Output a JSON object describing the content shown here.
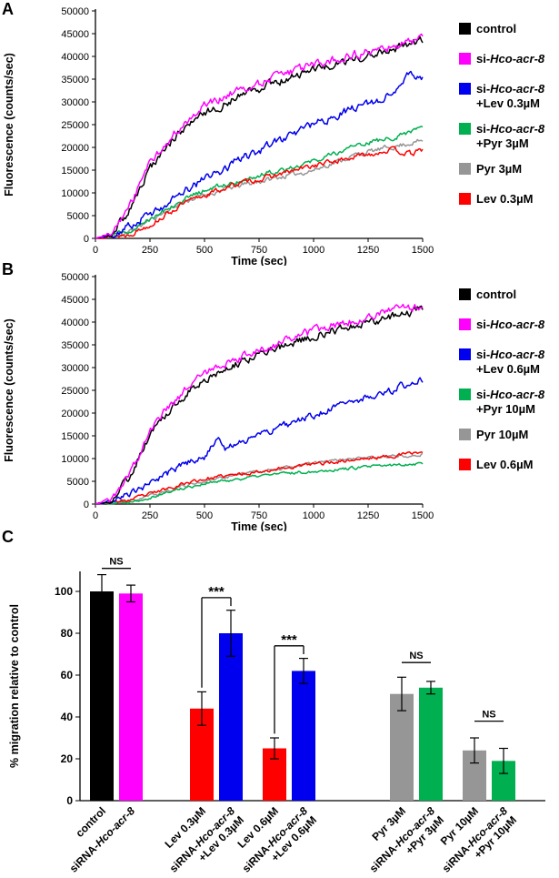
{
  "panel_labels": {
    "a": "A",
    "b": "B",
    "c": "C"
  },
  "chart_data": [
    {
      "type": "line",
      "panel": "A",
      "xlabel": "Time (sec)",
      "ylabel": "Fluorescence (counts/sec)",
      "xlim": [
        0,
        1500
      ],
      "ylim": [
        0,
        50000
      ],
      "xticks": [
        0,
        250,
        500,
        750,
        1000,
        1250,
        1500
      ],
      "yticks": [
        0,
        5000,
        10000,
        15000,
        20000,
        25000,
        30000,
        35000,
        40000,
        45000,
        50000
      ],
      "series": [
        {
          "name": "Pyr 3µM",
          "color": "#969696",
          "seed": 11,
          "noise": 900,
          "ax": [
            0,
            150,
            250,
            400,
            500,
            650,
            800,
            1000,
            1200,
            1350,
            1500
          ],
          "ay": [
            0,
            1200,
            4000,
            8000,
            9500,
            11500,
            13000,
            15000,
            18500,
            20000,
            21500
          ]
        },
        {
          "name": "si-Hco-acr-8 +Pyr 3µM",
          "color": "#00b050",
          "seed": 12,
          "noise": 900,
          "ax": [
            0,
            150,
            250,
            400,
            500,
            650,
            800,
            1000,
            1200,
            1350,
            1500
          ],
          "ay": [
            0,
            1500,
            4500,
            8500,
            10500,
            12500,
            14500,
            17000,
            20500,
            22000,
            24500
          ]
        },
        {
          "name": "Lev 0.3µM",
          "color": "#ff0000",
          "seed": 13,
          "noise": 950,
          "ax": [
            0,
            150,
            250,
            400,
            500,
            650,
            800,
            1000,
            1200,
            1350,
            1450,
            1500
          ],
          "ay": [
            0,
            800,
            3000,
            7500,
            9500,
            12000,
            13500,
            16000,
            18000,
            19500,
            18500,
            19500
          ]
        },
        {
          "name": "si-Hco-acr-8 +Lev 0.3µM",
          "color": "#0000ee",
          "seed": 14,
          "noise": 1500,
          "ax": [
            0,
            100,
            250,
            400,
            500,
            650,
            800,
            1000,
            1200,
            1350,
            1430,
            1500
          ],
          "ay": [
            0,
            1000,
            5500,
            10000,
            13000,
            17000,
            20500,
            25000,
            29000,
            31500,
            35500,
            35000
          ]
        },
        {
          "name": "control",
          "color": "#000000",
          "seed": 15,
          "noise": 1500,
          "ax": [
            0,
            75,
            150,
            250,
            350,
            500,
            650,
            800,
            1000,
            1200,
            1350,
            1500
          ],
          "ay": [
            0,
            1000,
            6000,
            15500,
            21500,
            27500,
            31000,
            34000,
            37000,
            39500,
            41500,
            43500
          ]
        },
        {
          "name": "si-Hco-acr-8",
          "color": "#ff00ff",
          "seed": 16,
          "noise": 1500,
          "ax": [
            0,
            75,
            150,
            250,
            350,
            500,
            650,
            800,
            1000,
            1200,
            1350,
            1500
          ],
          "ay": [
            0,
            1200,
            6500,
            16500,
            22500,
            29000,
            32500,
            35000,
            38000,
            40500,
            42000,
            44000
          ]
        }
      ],
      "legend": [
        {
          "color": "#000000",
          "lines": [
            [
              {
                "t": "control"
              }
            ]
          ]
        },
        {
          "color": "#ff00ff",
          "lines": [
            [
              {
                "t": "si-"
              },
              {
                "t": "Hco-acr-8",
                "i": true
              }
            ]
          ]
        },
        {
          "color": "#0000ee",
          "lines": [
            [
              {
                "t": "si-"
              },
              {
                "t": "Hco-acr-8",
                "i": true
              }
            ],
            [
              {
                "t": "+Lev 0.3µM"
              }
            ]
          ]
        },
        {
          "color": "#00b050",
          "lines": [
            [
              {
                "t": "si-"
              },
              {
                "t": "Hco-acr-8",
                "i": true
              }
            ],
            [
              {
                "t": "+Pyr 3µM"
              }
            ]
          ]
        },
        {
          "color": "#969696",
          "lines": [
            [
              {
                "t": "Pyr 3µM"
              }
            ]
          ]
        },
        {
          "color": "#ff0000",
          "lines": [
            [
              {
                "t": "Lev 0.3µM"
              }
            ]
          ]
        }
      ]
    },
    {
      "type": "line",
      "panel": "B",
      "xlabel": "Time (sec)",
      "ylabel": "Fluorescence (counts/sec)",
      "xlim": [
        0,
        1500
      ],
      "ylim": [
        0,
        50000
      ],
      "xticks": [
        0,
        250,
        500,
        750,
        1000,
        1250,
        1500
      ],
      "yticks": [
        0,
        5000,
        10000,
        15000,
        20000,
        25000,
        30000,
        35000,
        40000,
        45000,
        50000
      ],
      "series": [
        {
          "name": "Pyr 10µM",
          "color": "#969696",
          "seed": 21,
          "noise": 600,
          "ax": [
            0,
            150,
            250,
            400,
            500,
            650,
            800,
            1000,
            1200,
            1350,
            1500
          ],
          "ay": [
            0,
            500,
            1800,
            4000,
            5000,
            6500,
            7500,
            9000,
            10000,
            10500,
            11000
          ]
        },
        {
          "name": "si-Hco-acr-8 +Pyr 10µM",
          "color": "#00b050",
          "seed": 22,
          "noise": 550,
          "ax": [
            0,
            150,
            250,
            400,
            500,
            650,
            800,
            1000,
            1200,
            1350,
            1500
          ],
          "ay": [
            0,
            500,
            1500,
            3500,
            4500,
            5500,
            6500,
            7200,
            8000,
            8500,
            9000
          ]
        },
        {
          "name": "Lev 0.6µM",
          "color": "#ff0000",
          "seed": 23,
          "noise": 650,
          "ax": [
            0,
            150,
            250,
            400,
            500,
            650,
            800,
            1000,
            1200,
            1350,
            1500
          ],
          "ay": [
            0,
            800,
            2200,
            4500,
            5500,
            6500,
            7500,
            8800,
            9800,
            10500,
            11500
          ]
        },
        {
          "name": "si-Hco-acr-8 +Lev 0.6µM",
          "color": "#0000ee",
          "seed": 24,
          "noise": 1300,
          "ax": [
            0,
            100,
            250,
            400,
            500,
            560,
            600,
            650,
            800,
            1000,
            1200,
            1350,
            1500
          ],
          "ay": [
            0,
            800,
            4500,
            8500,
            10500,
            14800,
            12000,
            13500,
            16000,
            19500,
            23000,
            25000,
            27500
          ]
        },
        {
          "name": "control",
          "color": "#000000",
          "seed": 25,
          "noise": 1500,
          "ax": [
            0,
            75,
            150,
            250,
            350,
            500,
            650,
            800,
            1000,
            1200,
            1350,
            1500
          ],
          "ay": [
            0,
            800,
            5500,
            15000,
            21500,
            27500,
            31000,
            33500,
            37000,
            39500,
            41000,
            43000
          ]
        },
        {
          "name": "si-Hco-acr-8",
          "color": "#ff00ff",
          "seed": 26,
          "noise": 1500,
          "ax": [
            0,
            75,
            150,
            250,
            350,
            500,
            650,
            800,
            1000,
            1200,
            1350,
            1500
          ],
          "ay": [
            0,
            1000,
            6000,
            16000,
            22500,
            28500,
            32000,
            34500,
            38000,
            40500,
            42500,
            43500
          ]
        }
      ],
      "legend": [
        {
          "color": "#000000",
          "lines": [
            [
              {
                "t": "control"
              }
            ]
          ]
        },
        {
          "color": "#ff00ff",
          "lines": [
            [
              {
                "t": "si-"
              },
              {
                "t": "Hco-acr-8",
                "i": true
              }
            ]
          ]
        },
        {
          "color": "#0000ee",
          "lines": [
            [
              {
                "t": "si-"
              },
              {
                "t": "Hco-acr-8",
                "i": true
              }
            ],
            [
              {
                "t": "+Lev 0.6µM"
              }
            ]
          ]
        },
        {
          "color": "#00b050",
          "lines": [
            [
              {
                "t": "si-"
              },
              {
                "t": "Hco-acr-8",
                "i": true
              }
            ],
            [
              {
                "t": "+Pyr 10µM"
              }
            ]
          ]
        },
        {
          "color": "#969696",
          "lines": [
            [
              {
                "t": "Pyr 10µM"
              }
            ]
          ]
        },
        {
          "color": "#ff0000",
          "lines": [
            [
              {
                "t": "Lev 0.6µM"
              }
            ]
          ]
        }
      ]
    },
    {
      "type": "bar",
      "panel": "C",
      "ylabel": "% migration relative to control",
      "ylim": [
        0,
        110
      ],
      "yticks": [
        0,
        20,
        40,
        60,
        80,
        100
      ],
      "bars": [
        {
          "cx": 112,
          "value": 100,
          "error": 8,
          "color": "#000000",
          "label_lines": [
            [
              {
                "t": "control"
              }
            ]
          ]
        },
        {
          "cx": 144,
          "value": 99,
          "error": 4,
          "color": "#ff00ff",
          "label_lines": [
            [
              {
                "t": "siRNA-"
              },
              {
                "t": "Hco-acr-8",
                "i": true
              }
            ]
          ]
        },
        {
          "cx": 222,
          "value": 44,
          "error": 8,
          "color": "#ff0000",
          "label_lines": [
            [
              {
                "t": "Lev 0.3µM"
              }
            ]
          ]
        },
        {
          "cx": 254,
          "value": 80,
          "error": 11,
          "color": "#0000ee",
          "label_lines": [
            [
              {
                "t": "siRNA-"
              },
              {
                "t": "Hco-acr-8",
                "i": true
              }
            ],
            [
              {
                "t": "+Lev 0.3µM"
              }
            ]
          ]
        },
        {
          "cx": 302,
          "value": 25,
          "error": 5,
          "color": "#ff0000",
          "label_lines": [
            [
              {
                "t": "Lev 0.6µM"
              }
            ]
          ]
        },
        {
          "cx": 334,
          "value": 62,
          "error": 6,
          "color": "#0000ee",
          "label_lines": [
            [
              {
                "t": "siRNA-"
              },
              {
                "t": "Hco-acr-8",
                "i": true
              }
            ],
            [
              {
                "t": "+Lev 0.6µM"
              }
            ]
          ]
        },
        {
          "cx": 442,
          "value": 51,
          "error": 8,
          "color": "#969696",
          "label_lines": [
            [
              {
                "t": "Pyr 3µM"
              }
            ]
          ]
        },
        {
          "cx": 474,
          "value": 54,
          "error": 3,
          "color": "#00b050",
          "label_lines": [
            [
              {
                "t": "siRNA-"
              },
              {
                "t": "Hco-acr-8",
                "i": true
              }
            ],
            [
              {
                "t": "+Pyr 3µM"
              }
            ]
          ]
        },
        {
          "cx": 522,
          "value": 24,
          "error": 6,
          "color": "#969696",
          "label_lines": [
            [
              {
                "t": "Pyr 10µM"
              }
            ]
          ]
        },
        {
          "cx": 554,
          "value": 19,
          "error": 6,
          "color": "#00b050",
          "label_lines": [
            [
              {
                "t": "siRNA-"
              },
              {
                "t": "Hco-acr-8",
                "i": true
              }
            ],
            [
              {
                "t": "+Pyr 10µM"
              }
            ]
          ]
        }
      ],
      "annotations": [
        {
          "style": "line",
          "from": 0,
          "to": 1,
          "y": 111,
          "text": "NS"
        },
        {
          "style": "bracket",
          "from": 2,
          "to": 3,
          "y": 97,
          "text": "***"
        },
        {
          "style": "bracket",
          "from": 4,
          "to": 5,
          "y": 74,
          "text": "***"
        },
        {
          "style": "line",
          "from": 6,
          "to": 7,
          "y": 66,
          "text": "NS"
        },
        {
          "style": "line",
          "from": 8,
          "to": 9,
          "y": 38,
          "text": "NS"
        }
      ]
    }
  ]
}
